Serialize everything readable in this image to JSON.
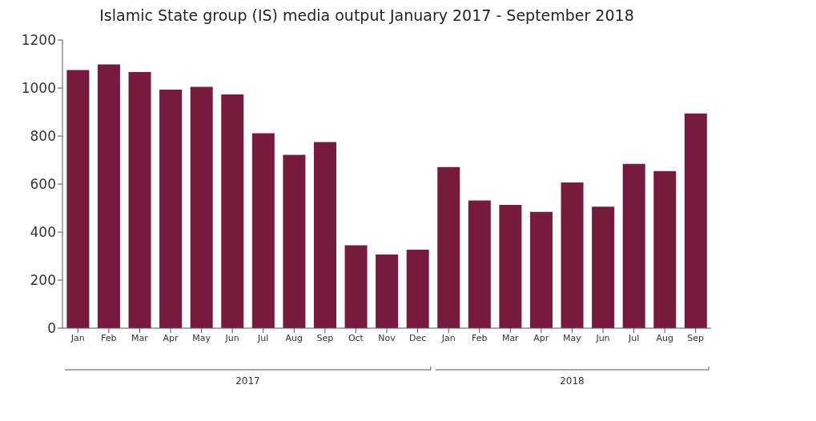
{
  "chart_data": {
    "type": "bar",
    "title": "Islamic State group (IS) media output January 2017 - September 2018",
    "categories": [
      "Jan",
      "Feb",
      "Mar",
      "Apr",
      "May",
      "Jun",
      "Jul",
      "Aug",
      "Sep",
      "Oct",
      "Nov",
      "Dec",
      "Jan",
      "Feb",
      "Mar",
      "Apr",
      "May",
      "Jun",
      "Jul",
      "Aug",
      "Sep"
    ],
    "values": [
      1075,
      1098,
      1067,
      993,
      1005,
      973,
      812,
      722,
      775,
      345,
      307,
      327,
      671,
      532,
      513,
      484,
      607,
      506,
      684,
      654,
      894
    ],
    "color": "#761b3e",
    "ylim": [
      0,
      1200
    ],
    "yticks": [
      0,
      200,
      400,
      600,
      800,
      1000,
      1200
    ],
    "grid": false,
    "annotations": [
      "2017",
      "2018"
    ]
  }
}
